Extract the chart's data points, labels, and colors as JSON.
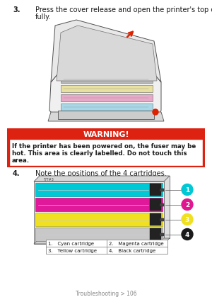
{
  "bg_color": "#ffffff",
  "step3_number": "3.",
  "step3_text": "Press the cover release and open the printer's top cover\nfully.",
  "warning_bg": "#dd2211",
  "warning_title": "WARNING!",
  "warning_body": "If the printer has been powered on, the fuser may be\nhot. This area is clearly labelled. Do not touch this\narea.",
  "warning_border": "#dd2211",
  "step4_number": "4.",
  "step4_text": "Note the positions of the 4 cartridges.",
  "cartridge_labels": [
    [
      "1.   Cyan cartridge",
      "2.   Magenta cartridge"
    ],
    [
      "3.   Yellow cartridge",
      "4.   Black cartridge"
    ]
  ],
  "circle_colors": [
    "#00c8d4",
    "#e01890",
    "#f0e020",
    "#1a1a1a"
  ],
  "circle_numbers": [
    "1",
    "2",
    "3",
    "4"
  ],
  "footer": "Troubleshooting > 106",
  "font_color": "#1a1a1a",
  "warn_text_color": "#1a1a1a"
}
